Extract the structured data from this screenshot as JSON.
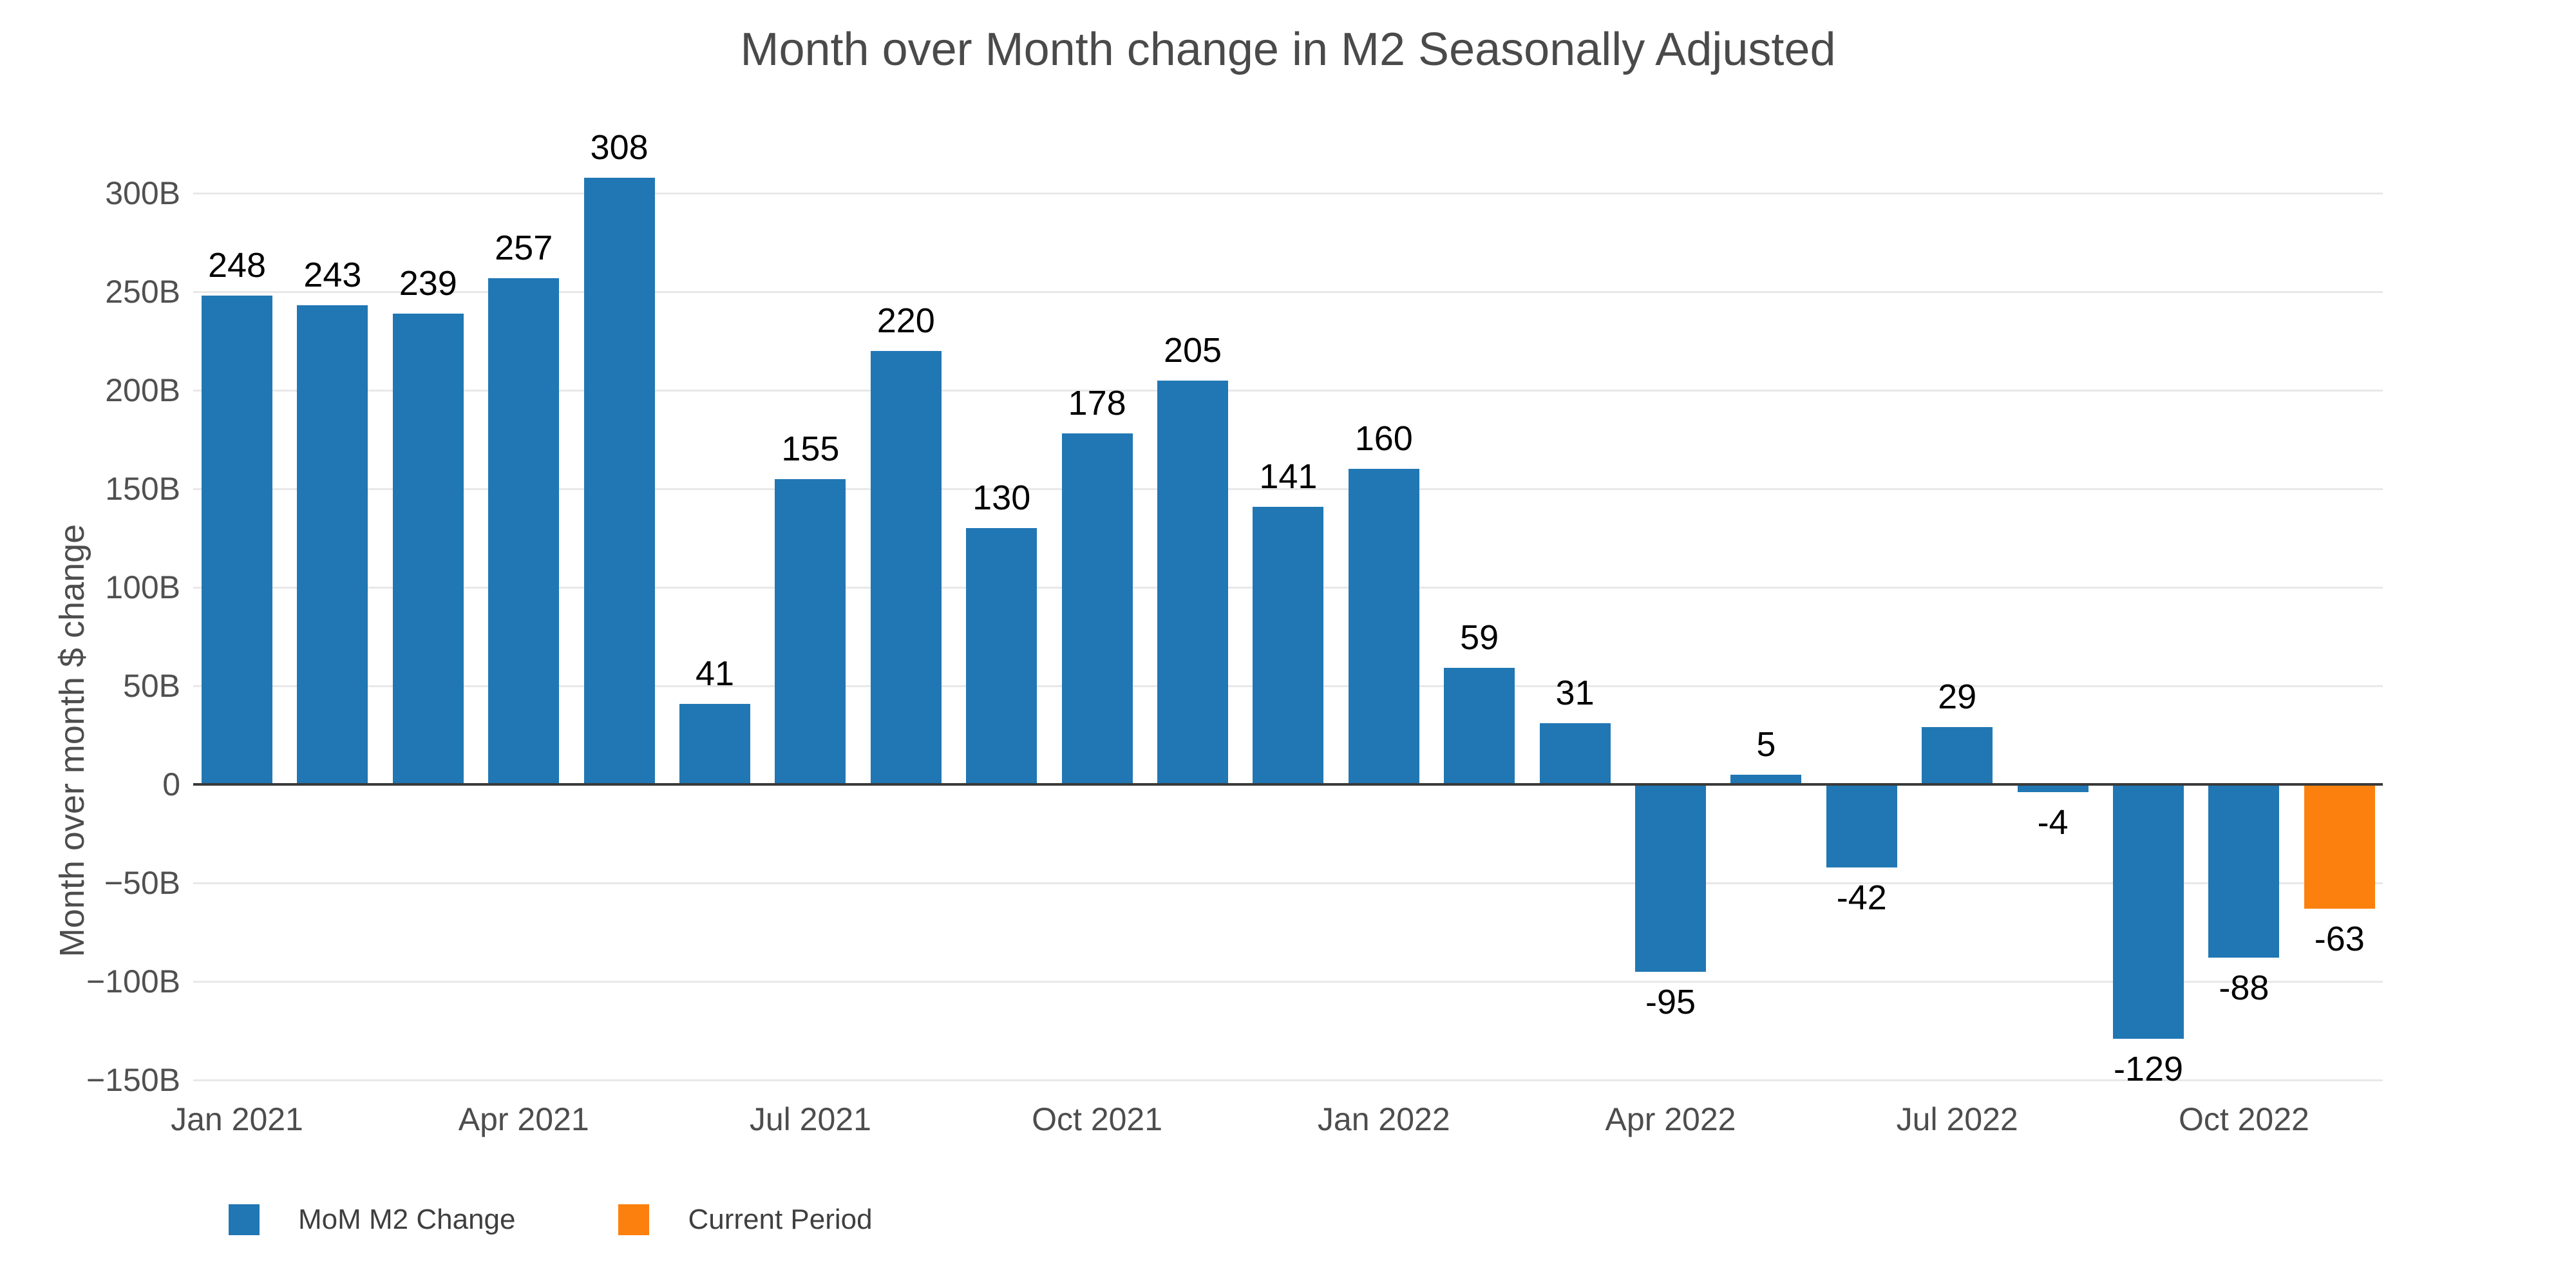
{
  "title": "Month over Month change in M2 Seasonally Adjusted",
  "y_axis": {
    "title": "Month over month $ change",
    "ticks": [
      {
        "label": "300B",
        "value": 300
      },
      {
        "label": "250B",
        "value": 250
      },
      {
        "label": "200B",
        "value": 200
      },
      {
        "label": "150B",
        "value": 150
      },
      {
        "label": "100B",
        "value": 100
      },
      {
        "label": "50B",
        "value": 50
      },
      {
        "label": "0",
        "value": 0
      },
      {
        "label": "−50B",
        "value": -50
      },
      {
        "label": "−100B",
        "value": -100
      },
      {
        "label": "−150B",
        "value": -150
      }
    ]
  },
  "x_axis": {
    "ticks": [
      {
        "label": "Jan 2021",
        "index": 0
      },
      {
        "label": "Apr 2021",
        "index": 3
      },
      {
        "label": "Jul 2021",
        "index": 6
      },
      {
        "label": "Oct 2021",
        "index": 9
      },
      {
        "label": "Jan 2022",
        "index": 12
      },
      {
        "label": "Apr 2022",
        "index": 15
      },
      {
        "label": "Jul 2022",
        "index": 18
      },
      {
        "label": "Oct 2022",
        "index": 21
      }
    ]
  },
  "legend": [
    {
      "label": "MoM M2 Change",
      "color": "#2077B4"
    },
    {
      "label": "Current Period",
      "color": "#FC800E"
    }
  ],
  "colors": {
    "bar": "#2077B4",
    "current": "#FC800E",
    "grid": "#E8E8E8",
    "zero_line": "#3A3A3A",
    "title_text": "#4A4A4A",
    "tick_text": "#505050",
    "value_label_text": "#000000",
    "legend_text": "#3F3F3F"
  },
  "chart_data": {
    "type": "bar",
    "title": "Month over Month change in M2 Seasonally Adjusted",
    "xlabel": "",
    "ylabel": "Month over month $ change",
    "categories": [
      "Jan 2021",
      "Feb 2021",
      "Mar 2021",
      "Apr 2021",
      "May 2021",
      "Jun 2021",
      "Jul 2021",
      "Aug 2021",
      "Sep 2021",
      "Oct 2021",
      "Nov 2021",
      "Dec 2021",
      "Jan 2022",
      "Feb 2022",
      "Mar 2022",
      "Apr 2022",
      "May 2022",
      "Jun 2022",
      "Jul 2022",
      "Aug 2022",
      "Sep 2022",
      "Oct 2022",
      "Nov 2022"
    ],
    "values": [
      248,
      243,
      239,
      257,
      308,
      41,
      155,
      220,
      130,
      178,
      205,
      141,
      160,
      59,
      31,
      -95,
      5,
      -42,
      29,
      -4,
      -129,
      -88,
      -63
    ],
    "data_labels": [
      "248",
      "243",
      "239",
      "257",
      "308",
      "41",
      "155",
      "220",
      "130",
      "178",
      "205",
      "141",
      "160",
      "59",
      "31",
      "-95",
      "5",
      "-42",
      "29",
      "-4",
      "-129",
      "-88",
      "-63"
    ],
    "series": [
      {
        "name": "MoM M2 Change",
        "color": "#2077B4"
      }
    ],
    "highlight": {
      "index": 22,
      "name": "Current Period",
      "color": "#FC800E"
    },
    "x_tick_labels": [
      "Jan 2021",
      "Apr 2021",
      "Jul 2021",
      "Oct 2021",
      "Jan 2022",
      "Apr 2022",
      "Jul 2022",
      "Oct 2022"
    ],
    "y_tick_values": [
      300,
      250,
      200,
      150,
      100,
      50,
      0,
      -50,
      -100,
      -150
    ],
    "ylim": [
      -165,
      330
    ],
    "grid": "horizontal",
    "units": "billions USD",
    "legend_position": "bottom-left"
  }
}
